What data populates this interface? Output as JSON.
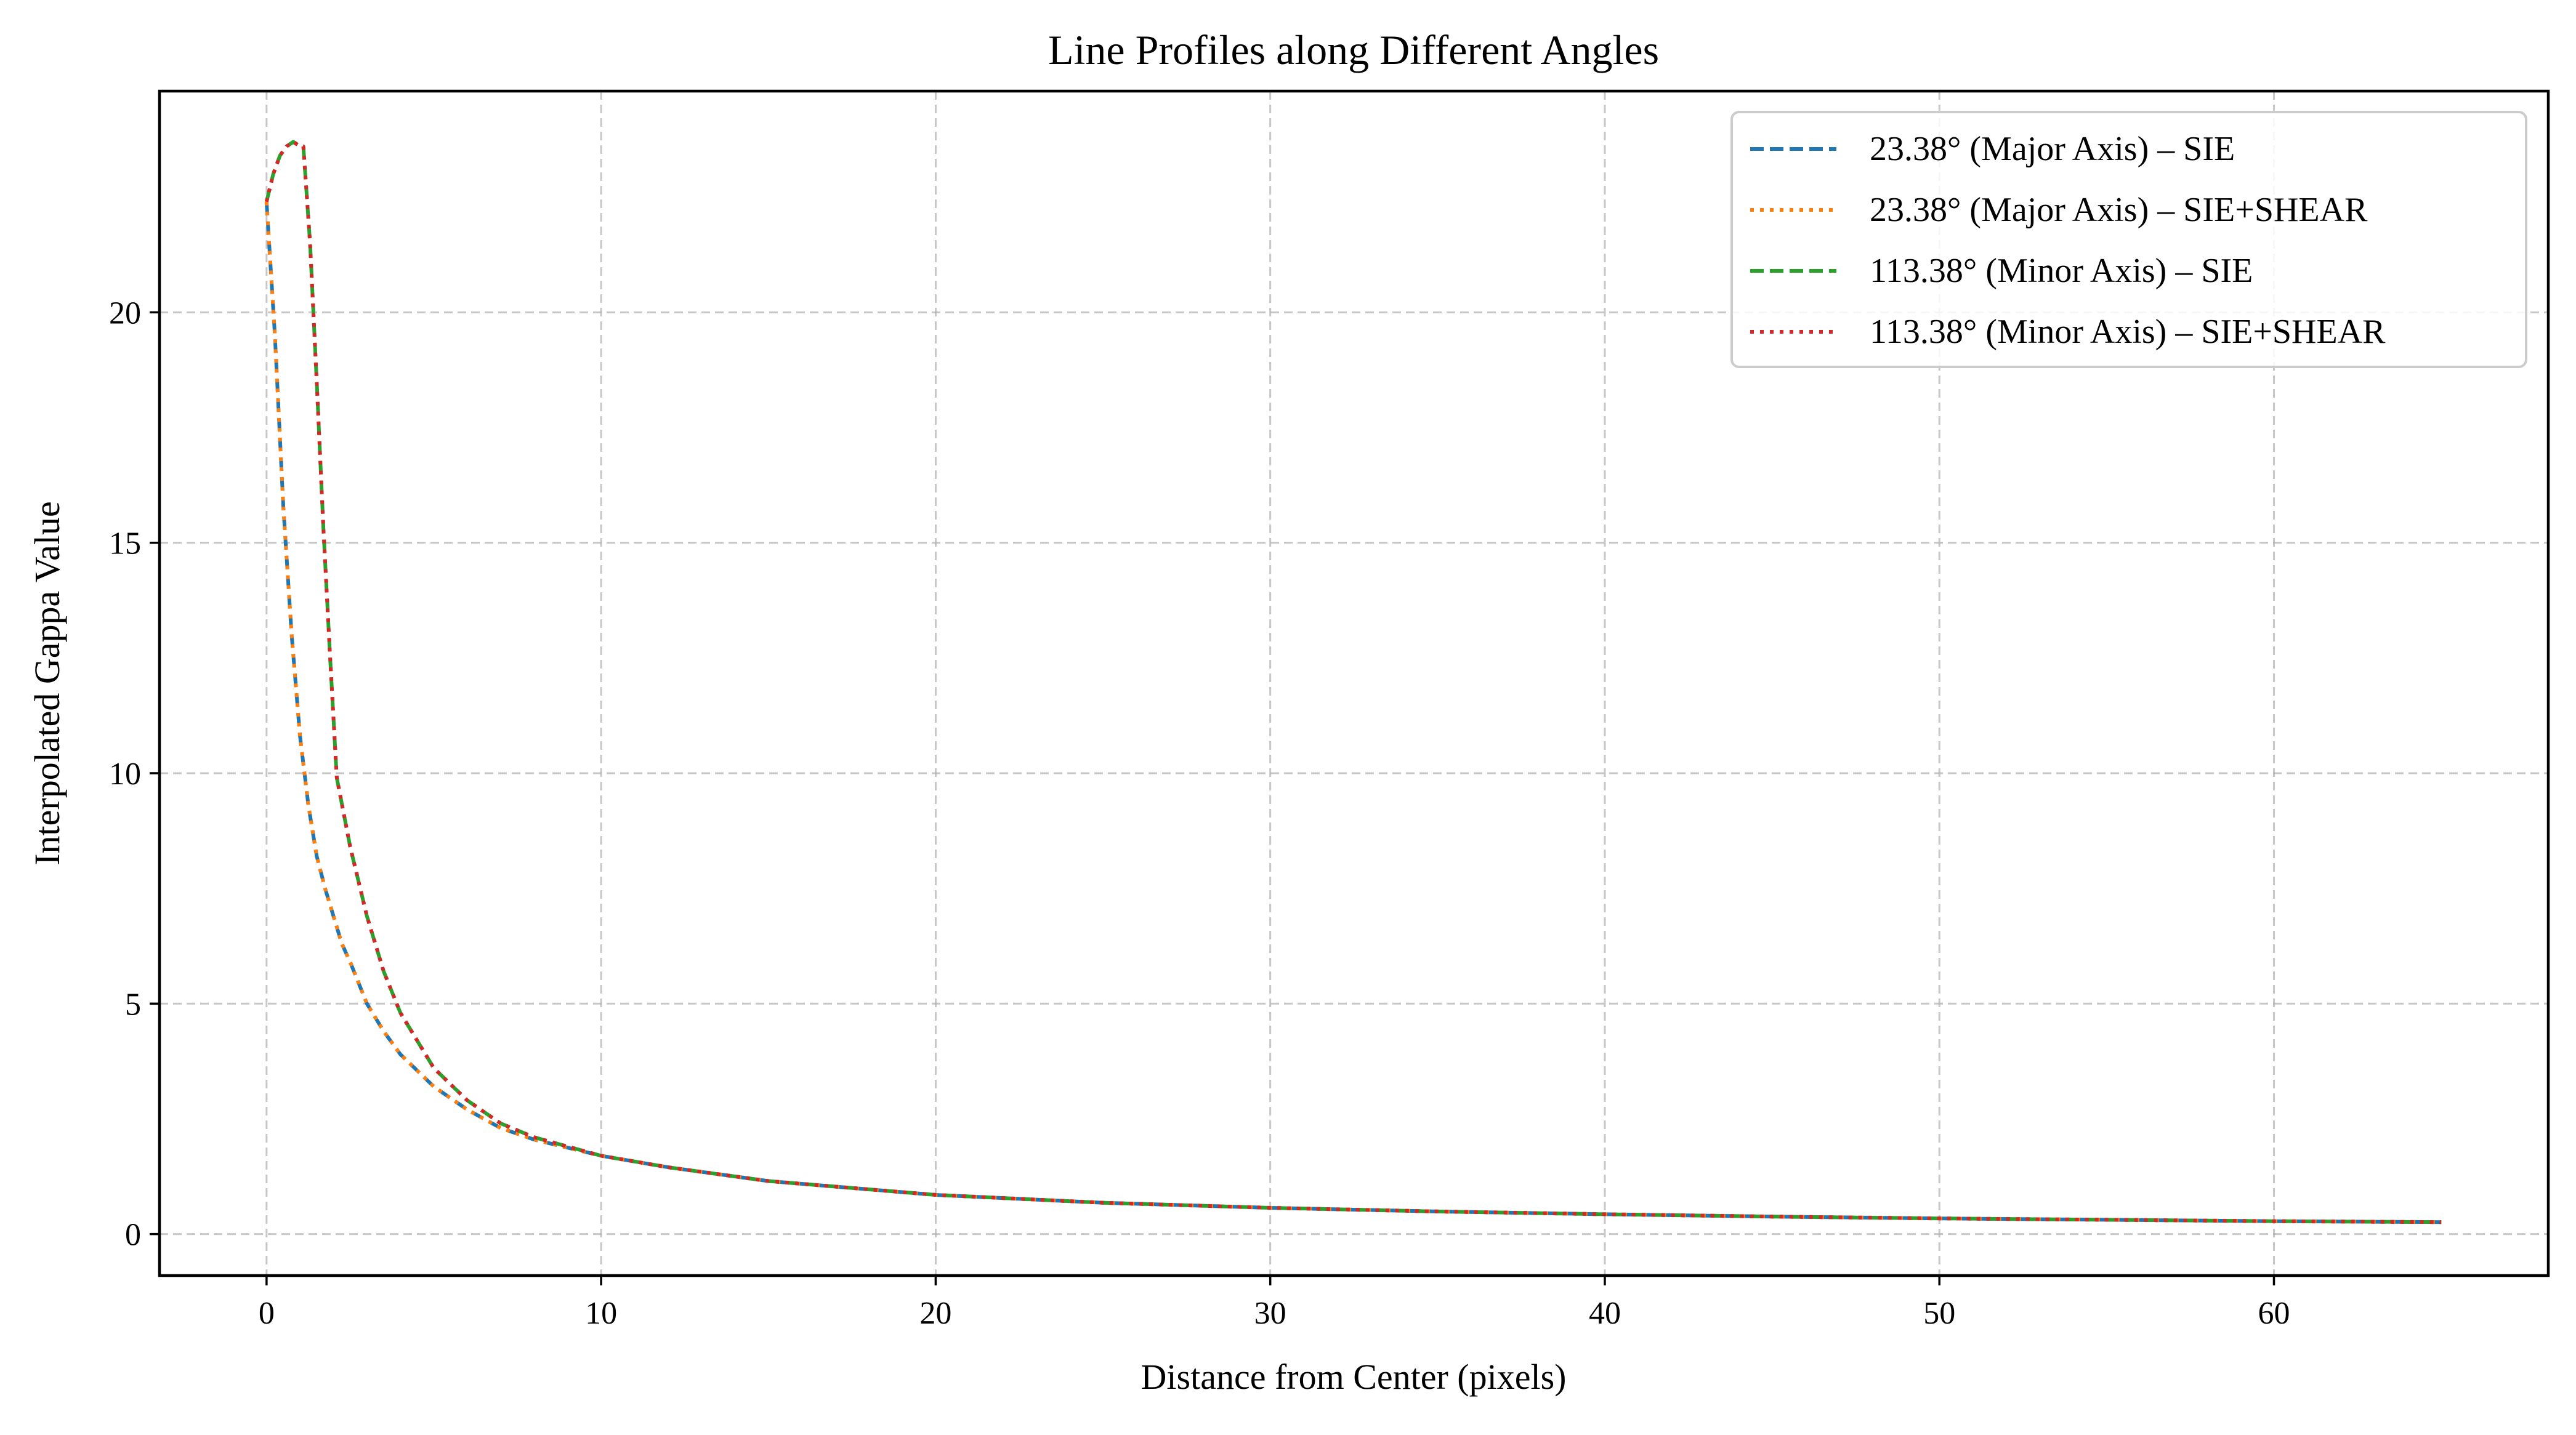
{
  "chart_data": {
    "type": "line",
    "title": "Line Profiles along Different Angles",
    "xlabel": "Distance from Center (pixels)",
    "ylabel": "Interpolated Gappa Value",
    "xlim": [
      -3.2,
      68.2
    ],
    "ylim": [
      -0.9,
      24.8
    ],
    "xticks": [
      0,
      10,
      20,
      30,
      40,
      50,
      60
    ],
    "yticks": [
      0,
      5,
      10,
      15,
      20
    ],
    "grid": true,
    "legend_position": "top-right",
    "series": [
      {
        "name": "23.38° (Major Axis) – SIE",
        "color": "#1f77b4",
        "dash": "dashed",
        "x": [
          0,
          0.25,
          0.5,
          0.75,
          1.0,
          1.25,
          1.5,
          1.75,
          2.0,
          2.25,
          2.5,
          3,
          3.5,
          4,
          5,
          6,
          7,
          8,
          10,
          12,
          15,
          20,
          25,
          30,
          35,
          40,
          45,
          50,
          55,
          60,
          65
        ],
        "y": [
          22.4,
          19.5,
          15.8,
          13.0,
          10.8,
          9.3,
          8.2,
          7.5,
          6.9,
          6.3,
          5.9,
          5.0,
          4.4,
          3.9,
          3.2,
          2.7,
          2.3,
          2.05,
          1.7,
          1.45,
          1.15,
          0.85,
          0.68,
          0.57,
          0.49,
          0.43,
          0.38,
          0.34,
          0.31,
          0.28,
          0.26
        ]
      },
      {
        "name": "23.38° (Major Axis) – SIE+SHEAR",
        "color": "#ff7f0e",
        "dash": "dotted",
        "x": [
          0,
          0.25,
          0.5,
          0.75,
          1.0,
          1.25,
          1.5,
          1.75,
          2.0,
          2.25,
          2.5,
          3,
          3.5,
          4,
          5,
          6,
          7,
          8,
          10,
          12,
          15,
          20,
          25,
          30,
          35,
          40,
          45,
          50,
          55,
          60,
          65
        ],
        "y": [
          22.4,
          19.5,
          15.8,
          13.0,
          10.8,
          9.3,
          8.2,
          7.5,
          6.9,
          6.3,
          5.9,
          5.0,
          4.4,
          3.9,
          3.2,
          2.7,
          2.3,
          2.05,
          1.7,
          1.45,
          1.15,
          0.85,
          0.68,
          0.57,
          0.49,
          0.43,
          0.38,
          0.34,
          0.31,
          0.28,
          0.26
        ]
      },
      {
        "name": "113.38° (Minor Axis) – SIE",
        "color": "#2ca02c",
        "dash": "dashed",
        "x": [
          0,
          0.2,
          0.4,
          0.6,
          0.8,
          1.0,
          1.1,
          1.3,
          1.5,
          1.7,
          1.9,
          2.1,
          2.5,
          3.0,
          3.5,
          4,
          5,
          6,
          7,
          8,
          10,
          12,
          15,
          20,
          25,
          30,
          35,
          40,
          45,
          50,
          55,
          60,
          65
        ],
        "y": [
          22.4,
          23.0,
          23.4,
          23.6,
          23.7,
          23.6,
          23.6,
          21.5,
          18.5,
          15.3,
          12.5,
          9.9,
          8.4,
          6.9,
          5.7,
          4.8,
          3.6,
          2.9,
          2.4,
          2.1,
          1.7,
          1.45,
          1.15,
          0.85,
          0.68,
          0.57,
          0.49,
          0.43,
          0.38,
          0.34,
          0.31,
          0.28,
          0.26
        ]
      },
      {
        "name": "113.38° (Minor Axis) – SIE+SHEAR",
        "color": "#d62728",
        "dash": "dotted",
        "x": [
          0,
          0.2,
          0.4,
          0.6,
          0.8,
          1.0,
          1.1,
          1.3,
          1.5,
          1.7,
          1.9,
          2.1,
          2.5,
          3.0,
          3.5,
          4,
          5,
          6,
          7,
          8,
          10,
          12,
          15,
          20,
          25,
          30,
          35,
          40,
          45,
          50,
          55,
          60,
          65
        ],
        "y": [
          22.4,
          23.0,
          23.4,
          23.6,
          23.7,
          23.6,
          23.6,
          21.5,
          18.5,
          15.3,
          12.5,
          9.9,
          8.4,
          6.9,
          5.7,
          4.8,
          3.6,
          2.9,
          2.4,
          2.1,
          1.7,
          1.45,
          1.15,
          0.85,
          0.68,
          0.57,
          0.49,
          0.43,
          0.38,
          0.34,
          0.31,
          0.28,
          0.26
        ]
      }
    ]
  }
}
